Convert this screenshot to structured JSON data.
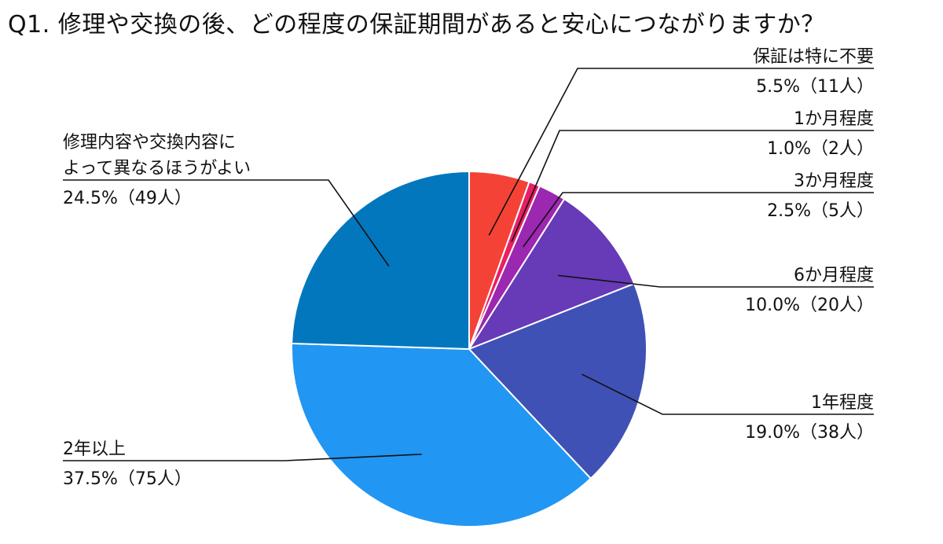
{
  "chart_data": {
    "type": "pie",
    "title": "Q1. 修理や交換の後、どの程度の保証期間があると安心につながりますか？",
    "slices": [
      {
        "label": "保証は特に不要",
        "label_lines": [
          "保証は特に不要"
        ],
        "value_text": "5.5%（11人）",
        "percent": 5.5,
        "count": 11,
        "color": "#f44336"
      },
      {
        "label": "1か月程度",
        "label_lines": [
          "1か月程度"
        ],
        "value_text": "1.0%（2人）",
        "percent": 1.0,
        "count": 2,
        "color": "#e91e63"
      },
      {
        "label": "3か月程度",
        "label_lines": [
          "3か月程度"
        ],
        "value_text": "2.5%（5人）",
        "percent": 2.5,
        "count": 5,
        "color": "#9c27b0"
      },
      {
        "label": "6か月程度",
        "label_lines": [
          "6か月程度"
        ],
        "value_text": "10.0%（20人）",
        "percent": 10.0,
        "count": 20,
        "color": "#673ab7"
      },
      {
        "label": "1年程度",
        "label_lines": [
          "1年程度"
        ],
        "value_text": "19.0%（38人）",
        "percent": 19.0,
        "count": 38,
        "color": "#3f51b5"
      },
      {
        "label": "2年以上",
        "label_lines": [
          "2年以上"
        ],
        "value_text": "37.5%（75人）",
        "percent": 37.5,
        "count": 75,
        "color": "#2196f3"
      },
      {
        "label": "修理内容や交換内容によって異なるほうがよい",
        "label_lines": [
          "修理内容や交換内容に",
          "よって異なるほうがよい"
        ],
        "value_text": "24.5%（49人）",
        "percent": 24.5,
        "count": 49,
        "color": "#0277bd"
      }
    ]
  }
}
